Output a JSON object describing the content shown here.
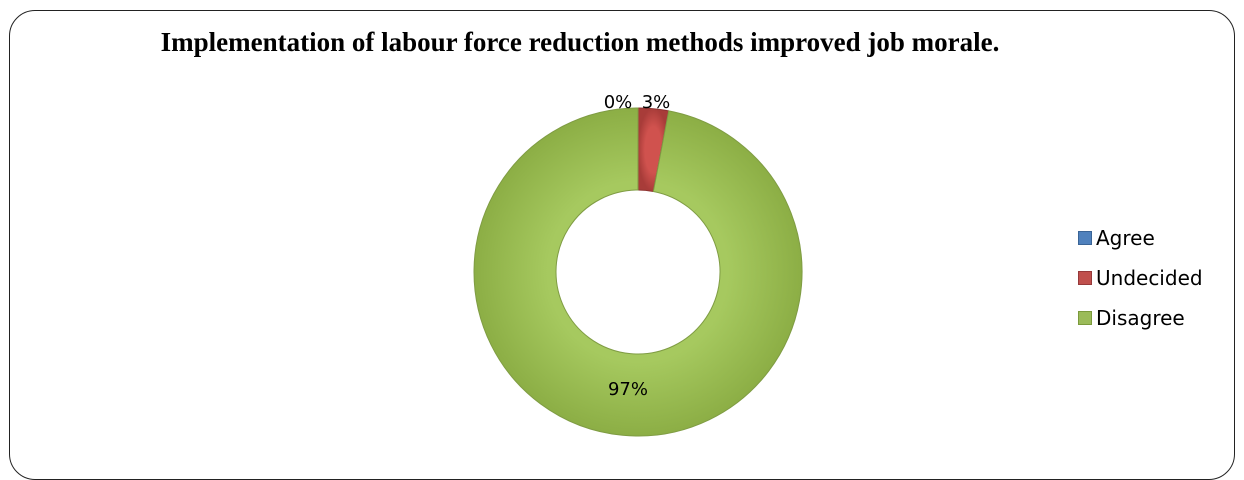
{
  "chart_data": {
    "type": "pie",
    "title": "Implementation of labour force reduction methods improved job morale.",
    "categories": [
      "Agree",
      "Undecided",
      "Disagree"
    ],
    "values": [
      0,
      3,
      97
    ],
    "data_labels": [
      "0%",
      "3%",
      "97%"
    ],
    "colors": [
      "#4f81bd",
      "#c0504d",
      "#9bbb59"
    ],
    "legend_position": "right"
  }
}
